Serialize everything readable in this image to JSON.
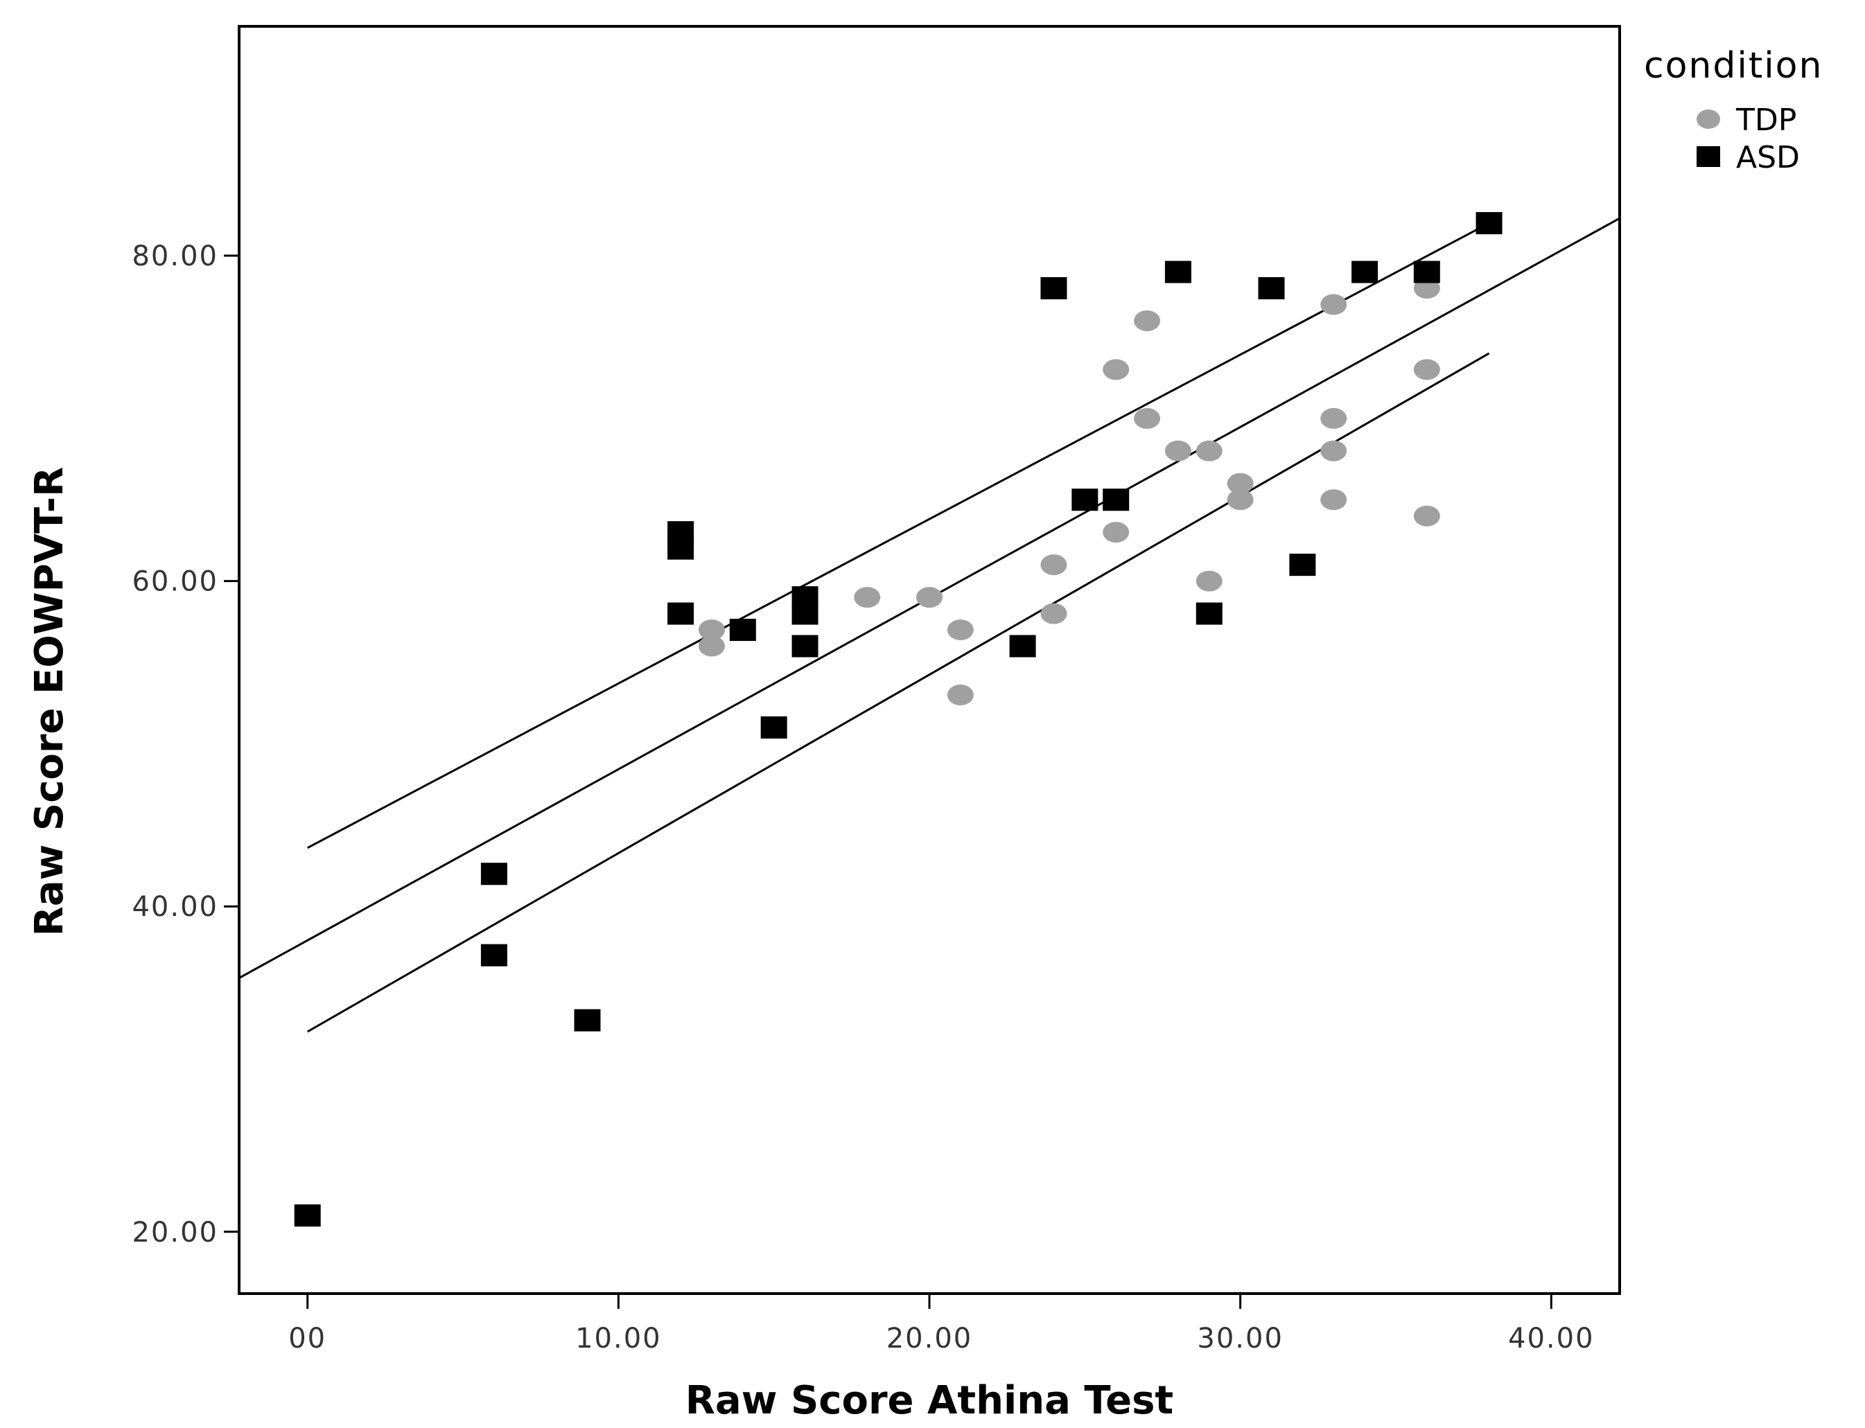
{
  "chart_data": {
    "type": "scatter",
    "xlabel": "Raw Score Athina Test",
    "ylabel": "Raw Score EOWPVT-R",
    "xlim": [
      -2.2,
      42.2
    ],
    "ylim": [
      16.2,
      94.1
    ],
    "x_ticks": [
      0,
      10,
      20,
      30,
      40
    ],
    "x_tick_labels": [
      "00",
      "10.00",
      "20.00",
      "30.00",
      "40.00"
    ],
    "y_ticks": [
      20,
      40,
      60,
      80
    ],
    "y_tick_labels": [
      "20.00",
      "40.00",
      "60.00",
      "80.00"
    ],
    "grid": false,
    "legend": {
      "title": "condition",
      "position": "top-right outside",
      "entries": [
        "TDP",
        "ASD"
      ]
    },
    "series": [
      {
        "name": "TDP",
        "marker": "circle",
        "color": "#a0a0a0",
        "points": [
          [
            13,
            57
          ],
          [
            13,
            56
          ],
          [
            18,
            59
          ],
          [
            20,
            59
          ],
          [
            21,
            57
          ],
          [
            21,
            53
          ],
          [
            24,
            61
          ],
          [
            24,
            58
          ],
          [
            26,
            73
          ],
          [
            26,
            63
          ],
          [
            27,
            76
          ],
          [
            27,
            70
          ],
          [
            28,
            68
          ],
          [
            29,
            68
          ],
          [
            29,
            60
          ],
          [
            30,
            66
          ],
          [
            30,
            65
          ],
          [
            33,
            77
          ],
          [
            33,
            70
          ],
          [
            33,
            68
          ],
          [
            33,
            65
          ],
          [
            36,
            78
          ],
          [
            36,
            73
          ],
          [
            36,
            64
          ]
        ]
      },
      {
        "name": "ASD",
        "marker": "square",
        "color": "#000000",
        "points": [
          [
            0,
            21
          ],
          [
            6,
            42
          ],
          [
            6,
            37
          ],
          [
            9,
            33
          ],
          [
            12,
            63
          ],
          [
            12,
            62
          ],
          [
            12,
            58
          ],
          [
            14,
            57
          ],
          [
            15,
            51
          ],
          [
            16,
            59
          ],
          [
            16,
            58
          ],
          [
            16,
            56
          ],
          [
            23,
            56
          ],
          [
            24,
            78
          ],
          [
            25,
            65
          ],
          [
            26,
            65
          ],
          [
            28,
            79
          ],
          [
            29,
            58
          ],
          [
            31,
            78
          ],
          [
            32,
            61
          ],
          [
            34,
            79
          ],
          [
            36,
            79
          ],
          [
            38,
            82
          ]
        ]
      }
    ],
    "fit_lines": [
      {
        "role": "regression",
        "x": [
          -2.2,
          42.2
        ],
        "y": [
          35.6,
          82.3
        ]
      },
      {
        "role": "upper confidence band",
        "x": [
          0,
          38
        ],
        "y": [
          43.6,
          82.0
        ]
      },
      {
        "role": "lower confidence band",
        "x": [
          0,
          38
        ],
        "y": [
          32.3,
          74.0
        ]
      }
    ],
    "colors": {
      "axis": "#000000",
      "tdp": "#a0a0a0",
      "asd": "#000000",
      "line": "#000000"
    }
  }
}
